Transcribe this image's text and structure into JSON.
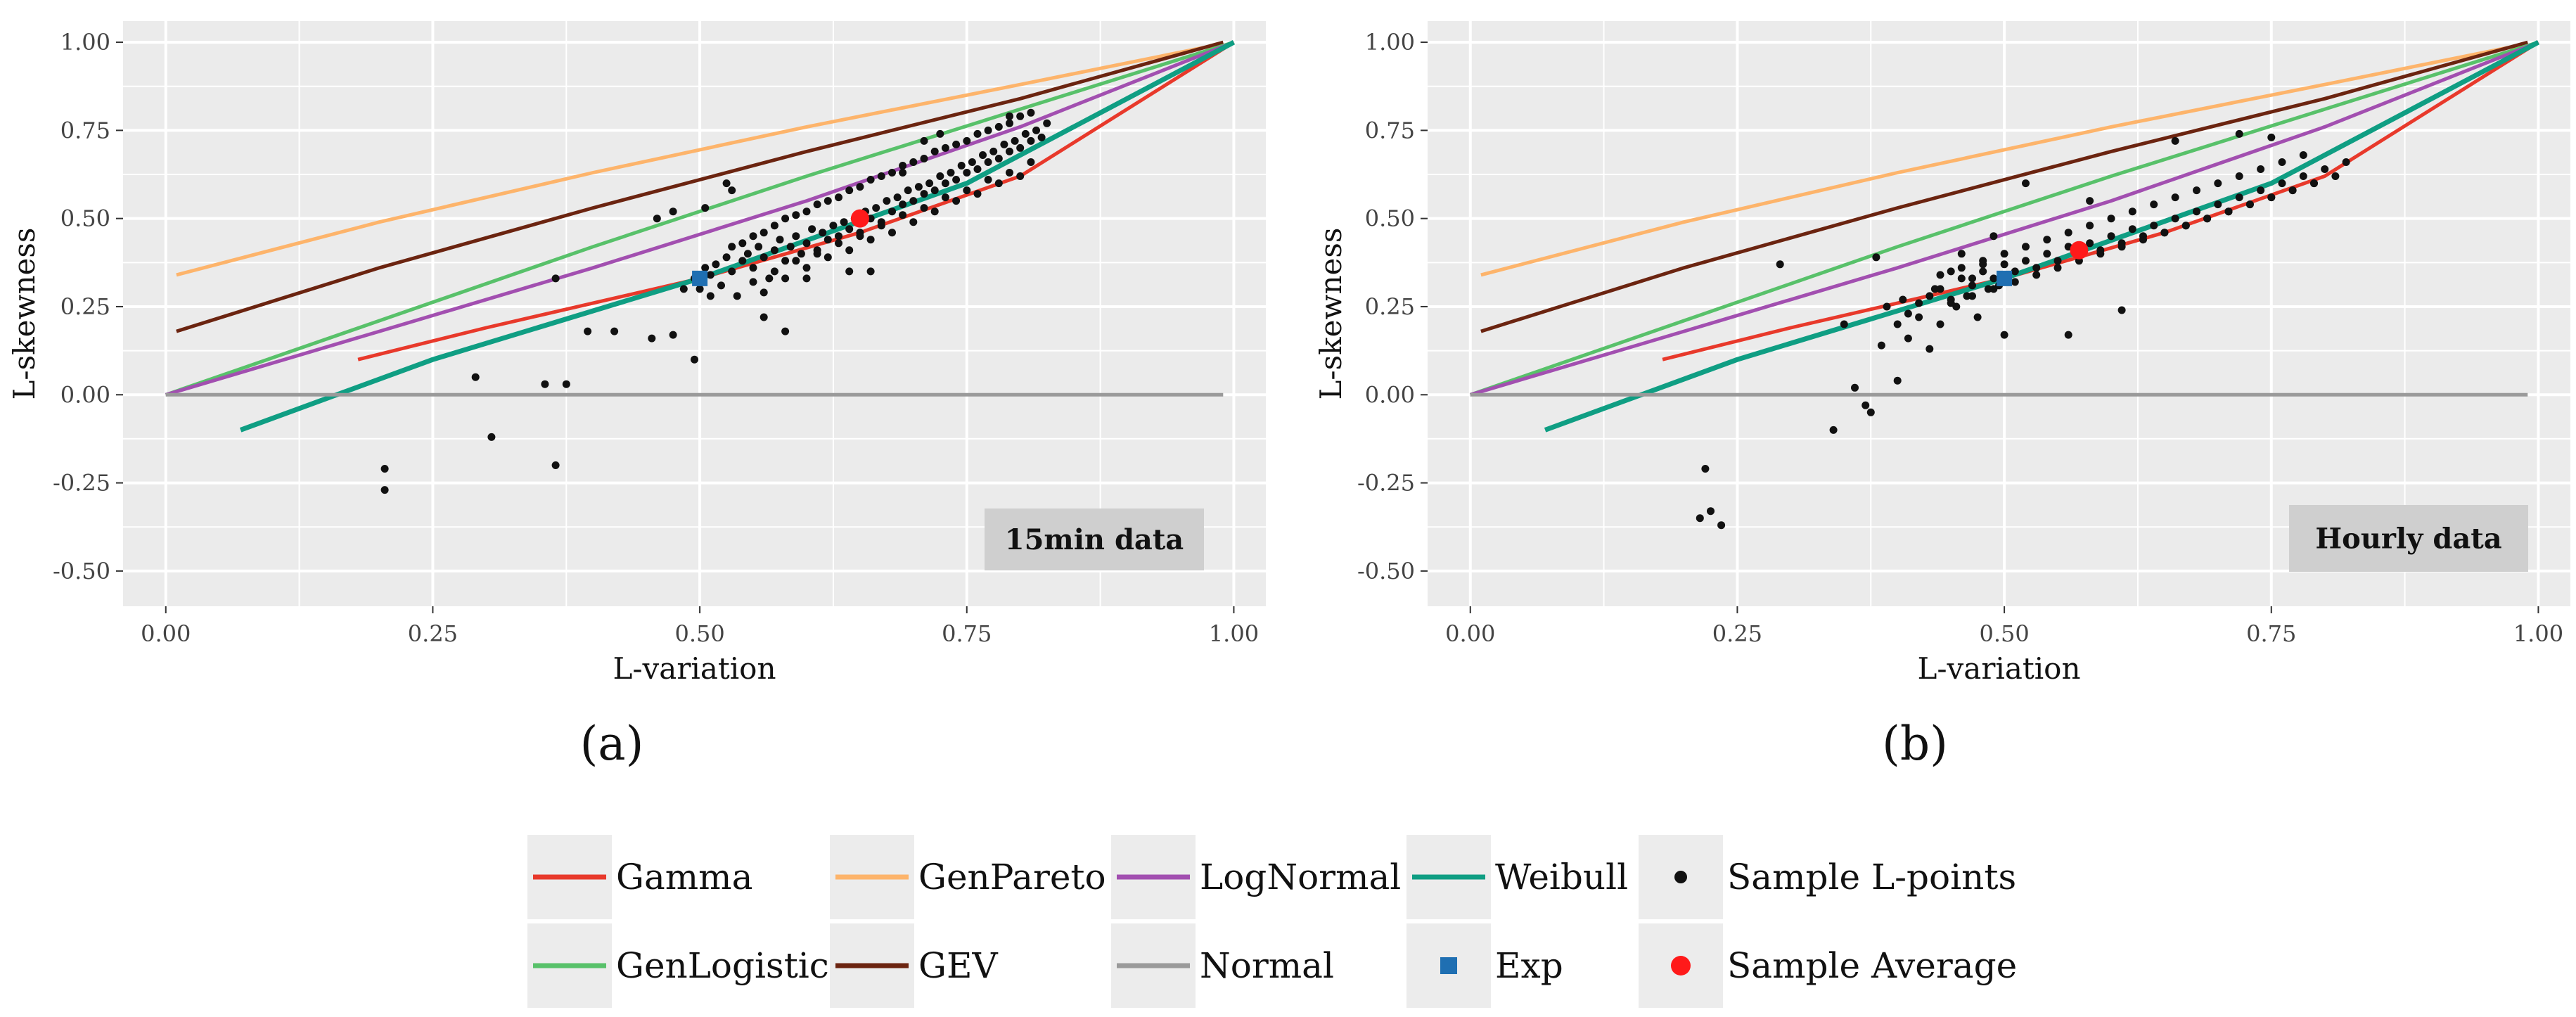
{
  "colors": {
    "Gamma": "#e8392b",
    "GenPareto": "#fdb46b",
    "LogNormal": "#a24fb0",
    "Weibull": "#0f9e83",
    "GenLogistic": "#58c16a",
    "GEV": "#6b2410",
    "Normal": "#9a9a9a",
    "Exp": "#1f6fb2",
    "SampleLpoints": "#111111",
    "SampleAverage": "#ff1a1a",
    "panel": "#ebebeb",
    "grid": "#ffffff",
    "badge": "#cfcfcf"
  },
  "legend": {
    "row1": [
      "Gamma",
      "GenPareto",
      "LogNormal",
      "Weibull",
      "Sample L-points"
    ],
    "row2": [
      "GenLogistic",
      "GEV",
      "Normal",
      "Exp",
      "Sample Average"
    ]
  },
  "chart_data": [
    {
      "type": "scatter",
      "panel_label": "(a)",
      "badge": "15min data",
      "xlabel": "L-variation",
      "ylabel": "L-skewness",
      "xlim": [
        -0.04,
        1.03
      ],
      "ylim": [
        -0.6,
        1.06
      ],
      "xticks": [
        "0.00",
        "0.25",
        "0.50",
        "0.75",
        "1.00"
      ],
      "yticks": [
        "-0.50",
        "-0.25",
        "0.00",
        "0.25",
        "0.50",
        "0.75",
        "1.00"
      ],
      "grid": true,
      "series": [
        {
          "name": "GenPareto",
          "kind": "line",
          "x": [
            0.01,
            0.2,
            0.4,
            0.6,
            0.8,
            0.98
          ],
          "y": [
            0.34,
            0.49,
            0.63,
            0.76,
            0.88,
            0.99
          ]
        },
        {
          "name": "GEV",
          "kind": "line",
          "x": [
            0.01,
            0.2,
            0.4,
            0.6,
            0.8,
            0.99
          ],
          "y": [
            0.18,
            0.36,
            0.53,
            0.69,
            0.84,
            1.0
          ]
        },
        {
          "name": "GenLogistic",
          "kind": "line",
          "x": [
            0.0,
            0.2,
            0.4,
            0.6,
            0.8,
            1.0
          ],
          "y": [
            0.0,
            0.21,
            0.42,
            0.62,
            0.81,
            1.0
          ]
        },
        {
          "name": "LogNormal",
          "kind": "line",
          "x": [
            0.0,
            0.2,
            0.4,
            0.6,
            0.8,
            1.0
          ],
          "y": [
            0.0,
            0.18,
            0.36,
            0.55,
            0.76,
            1.0
          ]
        },
        {
          "name": "Gamma",
          "kind": "line",
          "x": [
            0.18,
            0.3,
            0.5,
            0.65,
            0.8,
            1.0
          ],
          "y": [
            0.1,
            0.19,
            0.33,
            0.46,
            0.62,
            1.0
          ]
        },
        {
          "name": "Weibull",
          "kind": "line",
          "x": [
            0.07,
            0.25,
            0.5,
            0.75,
            1.0
          ],
          "y": [
            -0.1,
            0.1,
            0.33,
            0.6,
            1.0
          ]
        },
        {
          "name": "Normal",
          "kind": "line",
          "x": [
            0.0,
            0.99
          ],
          "y": [
            0.0,
            0.0
          ]
        },
        {
          "name": "Exp",
          "kind": "point",
          "x": [
            0.5
          ],
          "y": [
            0.33
          ]
        },
        {
          "name": "Sample Average",
          "kind": "point",
          "x": [
            0.65
          ],
          "y": [
            0.5
          ]
        },
        {
          "name": "Sample L-points",
          "kind": "scatter",
          "x": [
            0.205,
            0.205,
            0.29,
            0.305,
            0.355,
            0.365,
            0.375,
            0.365,
            0.395,
            0.42,
            0.455,
            0.46,
            0.475,
            0.475,
            0.485,
            0.495,
            0.505,
            0.51,
            0.525,
            0.53,
            0.56,
            0.58,
            0.6,
            0.64,
            0.66,
            0.71,
            0.725,
            0.79,
            0.69,
            0.495,
            0.5,
            0.505,
            0.51,
            0.515,
            0.52,
            0.525,
            0.53,
            0.535,
            0.54,
            0.545,
            0.55,
            0.555,
            0.56,
            0.565,
            0.57,
            0.575,
            0.58,
            0.585,
            0.59,
            0.595,
            0.6,
            0.605,
            0.61,
            0.615,
            0.62,
            0.625,
            0.63,
            0.635,
            0.64,
            0.645,
            0.65,
            0.655,
            0.66,
            0.665,
            0.67,
            0.675,
            0.68,
            0.685,
            0.69,
            0.695,
            0.7,
            0.705,
            0.71,
            0.715,
            0.72,
            0.725,
            0.73,
            0.735,
            0.74,
            0.745,
            0.75,
            0.755,
            0.76,
            0.765,
            0.77,
            0.775,
            0.78,
            0.785,
            0.79,
            0.795,
            0.8,
            0.805,
            0.81,
            0.815,
            0.82,
            0.825,
            0.53,
            0.54,
            0.55,
            0.56,
            0.57,
            0.58,
            0.59,
            0.6,
            0.61,
            0.62,
            0.63,
            0.64,
            0.65,
            0.66,
            0.67,
            0.68,
            0.69,
            0.7,
            0.71,
            0.72,
            0.73,
            0.74,
            0.75,
            0.76,
            0.77,
            0.78,
            0.79,
            0.8,
            0.81,
            0.55,
            0.57,
            0.59,
            0.61,
            0.63,
            0.65,
            0.67,
            0.69,
            0.71,
            0.73,
            0.75,
            0.77,
            0.79,
            0.81,
            0.56,
            0.58,
            0.6,
            0.62,
            0.64,
            0.66,
            0.68,
            0.7,
            0.72,
            0.74,
            0.76,
            0.78,
            0.8
          ],
          "y": [
            -0.27,
            -0.21,
            0.05,
            -0.12,
            0.03,
            -0.2,
            0.03,
            0.33,
            0.18,
            0.18,
            0.16,
            0.5,
            0.52,
            0.17,
            0.3,
            0.1,
            0.53,
            0.28,
            0.6,
            0.58,
            0.22,
            0.18,
            0.33,
            0.35,
            0.35,
            0.72,
            0.74,
            0.79,
            0.63,
            0.33,
            0.3,
            0.36,
            0.34,
            0.37,
            0.31,
            0.39,
            0.35,
            0.28,
            0.38,
            0.4,
            0.36,
            0.42,
            0.39,
            0.33,
            0.41,
            0.44,
            0.38,
            0.42,
            0.45,
            0.4,
            0.43,
            0.47,
            0.41,
            0.46,
            0.44,
            0.48,
            0.45,
            0.49,
            0.47,
            0.5,
            0.46,
            0.52,
            0.5,
            0.53,
            0.49,
            0.55,
            0.52,
            0.56,
            0.54,
            0.58,
            0.55,
            0.59,
            0.57,
            0.6,
            0.58,
            0.62,
            0.6,
            0.63,
            0.61,
            0.65,
            0.63,
            0.66,
            0.64,
            0.68,
            0.66,
            0.69,
            0.67,
            0.71,
            0.69,
            0.72,
            0.7,
            0.74,
            0.72,
            0.75,
            0.73,
            0.77,
            0.42,
            0.43,
            0.45,
            0.46,
            0.48,
            0.5,
            0.51,
            0.52,
            0.54,
            0.55,
            0.56,
            0.58,
            0.59,
            0.61,
            0.62,
            0.63,
            0.65,
            0.66,
            0.67,
            0.69,
            0.7,
            0.71,
            0.72,
            0.74,
            0.75,
            0.76,
            0.77,
            0.79,
            0.8,
            0.32,
            0.35,
            0.38,
            0.4,
            0.43,
            0.45,
            0.48,
            0.51,
            0.53,
            0.56,
            0.58,
            0.61,
            0.63,
            0.66,
            0.29,
            0.33,
            0.36,
            0.39,
            0.41,
            0.44,
            0.46,
            0.49,
            0.52,
            0.55,
            0.57,
            0.6,
            0.62
          ]
        }
      ]
    },
    {
      "type": "scatter",
      "panel_label": "(b)",
      "badge": "Hourly data",
      "xlabel": "L-variation",
      "ylabel": "L-skewness",
      "xlim": [
        -0.04,
        1.03
      ],
      "ylim": [
        -0.6,
        1.06
      ],
      "xticks": [
        "0.00",
        "0.25",
        "0.50",
        "0.75",
        "1.00"
      ],
      "yticks": [
        "-0.50",
        "-0.25",
        "0.00",
        "0.25",
        "0.50",
        "0.75",
        "1.00"
      ],
      "grid": true,
      "series": [
        {
          "name": "GenPareto",
          "kind": "line",
          "x": [
            0.01,
            0.2,
            0.4,
            0.6,
            0.8,
            0.98
          ],
          "y": [
            0.34,
            0.49,
            0.63,
            0.76,
            0.88,
            0.99
          ]
        },
        {
          "name": "GEV",
          "kind": "line",
          "x": [
            0.01,
            0.2,
            0.4,
            0.6,
            0.8,
            0.99
          ],
          "y": [
            0.18,
            0.36,
            0.53,
            0.69,
            0.84,
            1.0
          ]
        },
        {
          "name": "GenLogistic",
          "kind": "line",
          "x": [
            0.0,
            0.2,
            0.4,
            0.6,
            0.8,
            1.0
          ],
          "y": [
            0.0,
            0.21,
            0.42,
            0.62,
            0.81,
            1.0
          ]
        },
        {
          "name": "LogNormal",
          "kind": "line",
          "x": [
            0.0,
            0.2,
            0.4,
            0.6,
            0.8,
            1.0
          ],
          "y": [
            0.0,
            0.18,
            0.36,
            0.55,
            0.76,
            1.0
          ]
        },
        {
          "name": "Gamma",
          "kind": "line",
          "x": [
            0.18,
            0.3,
            0.5,
            0.65,
            0.8,
            1.0
          ],
          "y": [
            0.1,
            0.19,
            0.33,
            0.46,
            0.62,
            1.0
          ]
        },
        {
          "name": "Weibull",
          "kind": "line",
          "x": [
            0.07,
            0.25,
            0.5,
            0.75,
            1.0
          ],
          "y": [
            -0.1,
            0.1,
            0.33,
            0.6,
            1.0
          ]
        },
        {
          "name": "Normal",
          "kind": "line",
          "x": [
            0.0,
            0.99
          ],
          "y": [
            0.0,
            0.0
          ]
        },
        {
          "name": "Exp",
          "kind": "point",
          "x": [
            0.5
          ],
          "y": [
            0.33
          ]
        },
        {
          "name": "Sample Average",
          "kind": "point",
          "x": [
            0.57
          ],
          "y": [
            0.41
          ]
        },
        {
          "name": "Sample L-points",
          "kind": "scatter",
          "x": [
            0.215,
            0.22,
            0.225,
            0.235,
            0.29,
            0.34,
            0.35,
            0.36,
            0.37,
            0.375,
            0.38,
            0.385,
            0.39,
            0.4,
            0.405,
            0.41,
            0.42,
            0.43,
            0.435,
            0.44,
            0.45,
            0.455,
            0.46,
            0.465,
            0.47,
            0.475,
            0.48,
            0.485,
            0.49,
            0.495,
            0.4,
            0.41,
            0.42,
            0.43,
            0.44,
            0.45,
            0.46,
            0.47,
            0.48,
            0.49,
            0.5,
            0.51,
            0.52,
            0.53,
            0.54,
            0.55,
            0.56,
            0.57,
            0.58,
            0.59,
            0.6,
            0.61,
            0.62,
            0.63,
            0.64,
            0.65,
            0.66,
            0.67,
            0.68,
            0.69,
            0.7,
            0.71,
            0.72,
            0.73,
            0.74,
            0.75,
            0.76,
            0.77,
            0.78,
            0.79,
            0.8,
            0.81,
            0.82,
            0.44,
            0.46,
            0.48,
            0.5,
            0.52,
            0.54,
            0.56,
            0.58,
            0.6,
            0.62,
            0.64,
            0.66,
            0.68,
            0.7,
            0.72,
            0.74,
            0.76,
            0.78,
            0.45,
            0.47,
            0.49,
            0.51,
            0.53,
            0.55,
            0.57,
            0.59,
            0.61,
            0.63,
            0.65,
            0.67,
            0.69,
            0.71,
            0.73,
            0.75,
            0.77,
            0.79,
            0.5,
            0.52,
            0.56,
            0.58,
            0.61,
            0.66,
            0.72,
            0.75
          ],
          "y": [
            -0.35,
            -0.21,
            -0.33,
            -0.37,
            0.37,
            -0.1,
            0.2,
            0.02,
            -0.03,
            -0.05,
            0.39,
            0.14,
            0.25,
            0.04,
            0.27,
            0.16,
            0.22,
            0.13,
            0.3,
            0.2,
            0.35,
            0.25,
            0.4,
            0.28,
            0.33,
            0.22,
            0.37,
            0.3,
            0.45,
            0.31,
            0.2,
            0.23,
            0.26,
            0.28,
            0.3,
            0.27,
            0.33,
            0.31,
            0.35,
            0.33,
            0.37,
            0.35,
            0.38,
            0.36,
            0.4,
            0.38,
            0.42,
            0.4,
            0.43,
            0.41,
            0.45,
            0.43,
            0.47,
            0.45,
            0.48,
            0.46,
            0.5,
            0.48,
            0.52,
            0.5,
            0.54,
            0.52,
            0.56,
            0.54,
            0.58,
            0.56,
            0.6,
            0.58,
            0.62,
            0.6,
            0.64,
            0.62,
            0.66,
            0.34,
            0.36,
            0.38,
            0.4,
            0.42,
            0.44,
            0.46,
            0.48,
            0.5,
            0.52,
            0.54,
            0.56,
            0.58,
            0.6,
            0.62,
            0.64,
            0.66,
            0.68,
            0.26,
            0.28,
            0.3,
            0.32,
            0.34,
            0.36,
            0.38,
            0.4,
            0.42,
            0.44,
            0.46,
            0.48,
            0.5,
            0.52,
            0.54,
            0.56,
            0.58,
            0.6,
            0.17,
            0.6,
            0.17,
            0.55,
            0.24,
            0.72,
            0.74,
            0.73
          ]
        }
      ]
    }
  ]
}
